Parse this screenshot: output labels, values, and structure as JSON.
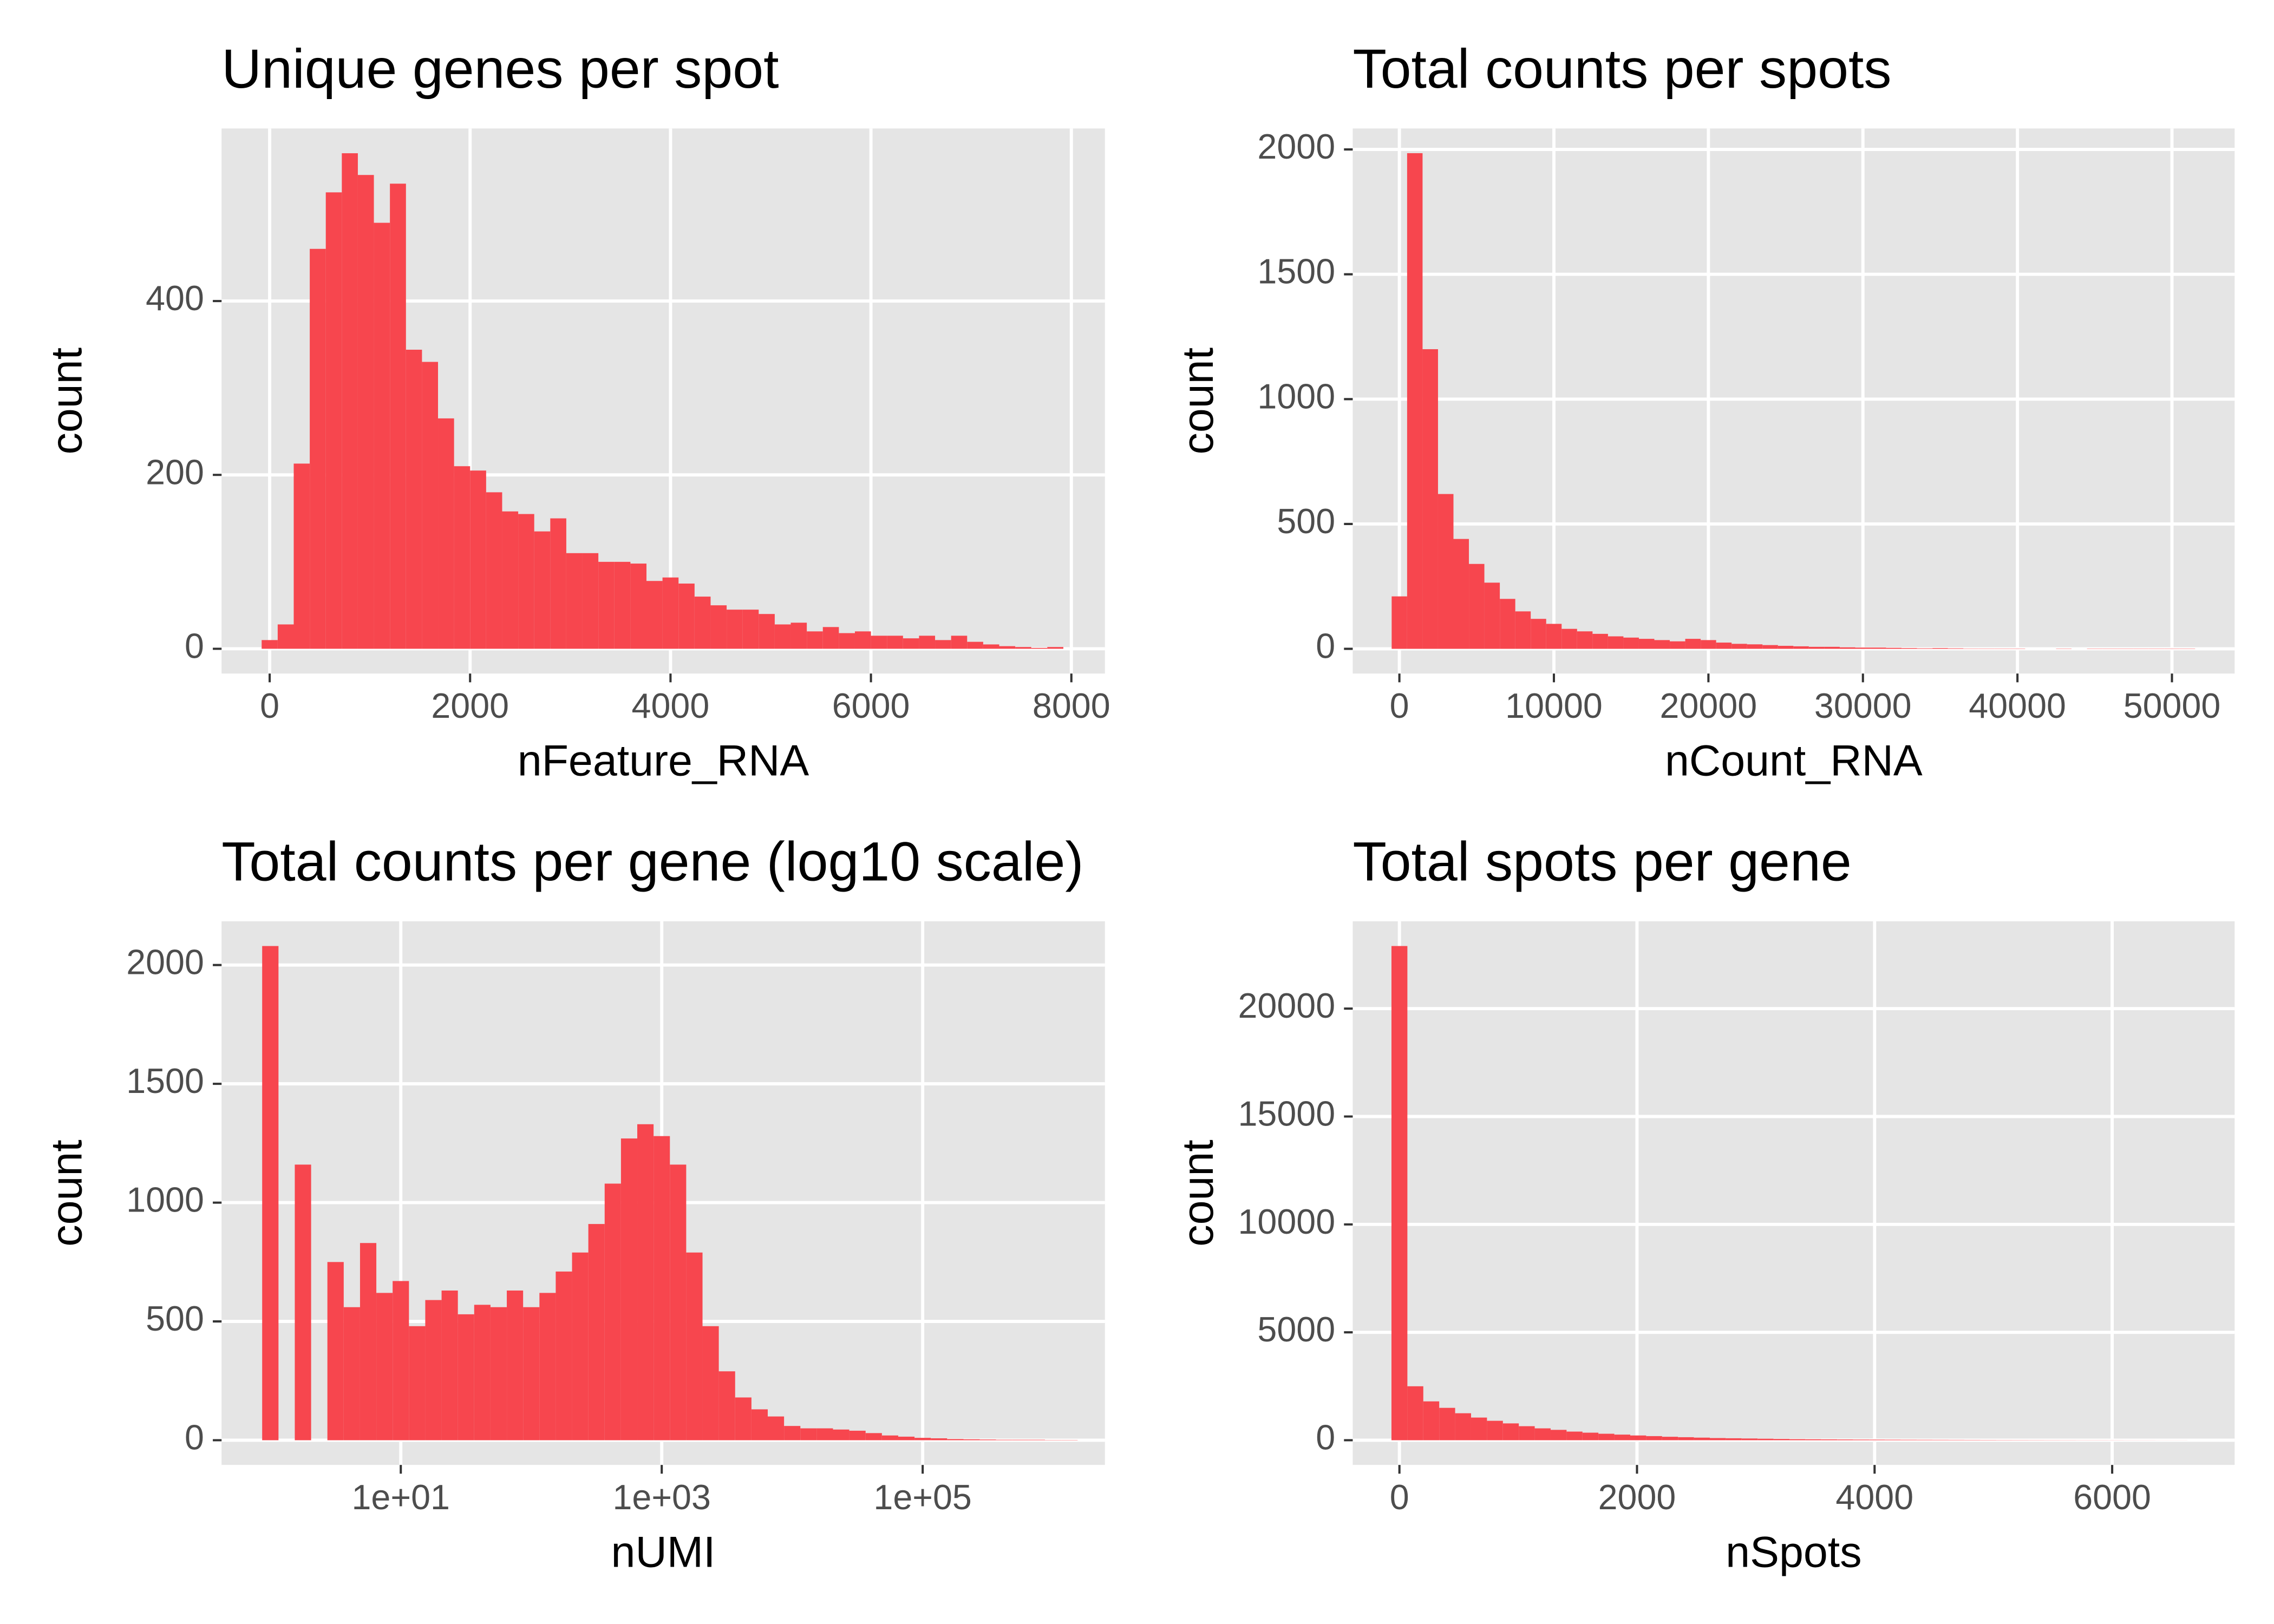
{
  "chart_data": [
    {
      "type": "histogram",
      "title": "Unique genes per spot",
      "xlabel": "nFeature_RNA",
      "ylabel": "count",
      "color": "#f7464e",
      "grid": true,
      "xscale": "linear",
      "bins": [
        -80,
        80,
        240,
        400,
        560,
        720,
        880,
        1040,
        1200,
        1360,
        1520,
        1680,
        1840,
        2000,
        2160,
        2320,
        2480,
        2640,
        2800,
        2960,
        3120,
        3280,
        3440,
        3600,
        3760,
        3920,
        4080,
        4240,
        4400,
        4560,
        4720,
        4880,
        5040,
        5200,
        5360,
        5520,
        5680,
        5840,
        6000,
        6160,
        6320,
        6480,
        6640,
        6800,
        6960,
        7120,
        7280,
        7440,
        7600,
        7760,
        7920
      ],
      "values": [
        10,
        28,
        213,
        460,
        525,
        570,
        545,
        490,
        535,
        344,
        330,
        265,
        210,
        205,
        180,
        158,
        155,
        135,
        150,
        110,
        110,
        100,
        100,
        98,
        78,
        82,
        75,
        60,
        50,
        45,
        45,
        40,
        28,
        30,
        20,
        25,
        18,
        20,
        15,
        15,
        12,
        15,
        10,
        15,
        8,
        5,
        3,
        2,
        1,
        2
      ],
      "xlim": [
        -480,
        8335
      ],
      "ylim": [
        -28.5,
        598.5
      ],
      "xticks": [
        0,
        2000,
        4000,
        6000,
        8000
      ],
      "yticks": [
        0,
        200,
        400
      ]
    },
    {
      "type": "histogram",
      "title": "Total counts per spots",
      "xlabel": "nCount_RNA",
      "ylabel": "count",
      "color": "#f7464e",
      "grid": true,
      "xscale": "linear",
      "bins": [
        -500,
        500,
        1500,
        2500,
        3500,
        4500,
        5500,
        6500,
        7500,
        8500,
        9500,
        10500,
        11500,
        12500,
        13500,
        14500,
        15500,
        16500,
        17500,
        18500,
        19500,
        20500,
        21500,
        22500,
        23500,
        24500,
        25500,
        26500,
        27500,
        28500,
        29500,
        30500,
        31500,
        32500,
        33500,
        34500,
        35500,
        36500,
        37500,
        38500,
        39500,
        40500,
        41500,
        42500,
        43500,
        44500,
        45500,
        46500,
        47500,
        48500,
        49500,
        50500,
        51500
      ],
      "values": [
        210,
        1985,
        1200,
        620,
        440,
        340,
        265,
        200,
        150,
        120,
        100,
        80,
        70,
        60,
        50,
        45,
        40,
        35,
        30,
        40,
        35,
        25,
        20,
        18,
        15,
        12,
        10,
        8,
        8,
        6,
        5,
        5,
        4,
        3,
        2,
        3,
        2,
        1,
        1,
        1,
        1,
        0,
        0,
        1,
        0,
        1,
        1,
        1,
        1,
        1,
        1,
        1
      ],
      "xlim": [
        -3019,
        54057
      ],
      "ylim": [
        -99,
        2084
      ],
      "xticks": [
        0,
        10000,
        20000,
        30000,
        40000,
        50000
      ],
      "yticks": [
        0,
        500,
        1000,
        1500,
        2000
      ]
    },
    {
      "type": "histogram",
      "title": "Total counts per gene (log10 scale)",
      "xlabel": "nUMI",
      "ylabel": "count",
      "color": "#f7464e",
      "grid": true,
      "xscale": "log",
      "bins": [
        0.866,
        1.155,
        1.54,
        2.054,
        2.738,
        3.652,
        4.87,
        6.494,
        8.66,
        11.55,
        15.4,
        20.54,
        27.38,
        36.52,
        48.7,
        64.94,
        86.6,
        115.5,
        154,
        205.4,
        273.8,
        365.2,
        487,
        649.4,
        866,
        1155,
        1540,
        2054,
        2738,
        3652,
        4870,
        6494,
        8660,
        11550,
        15400,
        20540,
        27380,
        36520,
        48700,
        64940,
        86600,
        115500,
        154000,
        205400,
        273800,
        365200,
        487000,
        649400,
        866000,
        1155000,
        1540000
      ],
      "values": [
        2080,
        0,
        1160,
        0,
        750,
        560,
        830,
        620,
        670,
        480,
        590,
        630,
        530,
        570,
        560,
        630,
        560,
        620,
        710,
        790,
        910,
        1080,
        1270,
        1330,
        1280,
        1160,
        790,
        480,
        290,
        180,
        130,
        100,
        60,
        50,
        50,
        45,
        40,
        30,
        20,
        15,
        10,
        8,
        5,
        4,
        3,
        2,
        2,
        2,
        1,
        1
      ],
      "xlim": [
        0.423,
        2494000
      ],
      "ylim": [
        -104,
        2184
      ],
      "xticks": [
        {
          "value": 10,
          "label": "1e+01"
        },
        {
          "value": 1000,
          "label": "1e+03"
        },
        {
          "value": 100000,
          "label": "1e+05"
        }
      ],
      "yticks": [
        0,
        500,
        1000,
        1500,
        2000
      ]
    },
    {
      "type": "histogram",
      "title": "Total spots per gene",
      "xlabel": "nSpots",
      "ylabel": "count",
      "color": "#f7464e",
      "grid": true,
      "xscale": "linear",
      "bins": [
        -67,
        67,
        201,
        335,
        469,
        603,
        737,
        871,
        1005,
        1139,
        1273,
        1407,
        1541,
        1675,
        1809,
        1943,
        2077,
        2211,
        2345,
        2479,
        2613,
        2747,
        2881,
        3015,
        3149,
        3283,
        3417,
        3551,
        3685,
        3819,
        3953,
        4087,
        4221,
        4355,
        4489,
        4623,
        4757,
        4891,
        5025,
        5159,
        5293,
        5427,
        5561,
        5695,
        5829,
        5963,
        6097,
        6231,
        6365,
        6499,
        6633
      ],
      "values": [
        22900,
        2500,
        1800,
        1500,
        1250,
        1050,
        900,
        780,
        650,
        550,
        480,
        400,
        350,
        300,
        260,
        220,
        190,
        160,
        140,
        120,
        100,
        90,
        80,
        70,
        60,
        50,
        45,
        40,
        35,
        30,
        28,
        25,
        22,
        20,
        18,
        16,
        14,
        12,
        10,
        9,
        8,
        7,
        6,
        5,
        5,
        4,
        3,
        3,
        2,
        2
      ],
      "xlim": [
        -393,
        7031
      ],
      "ylim": [
        -1145,
        24045
      ],
      "xticks": [
        0,
        2000,
        4000,
        6000
      ],
      "yticks": [
        0,
        5000,
        10000,
        15000,
        20000
      ]
    }
  ]
}
